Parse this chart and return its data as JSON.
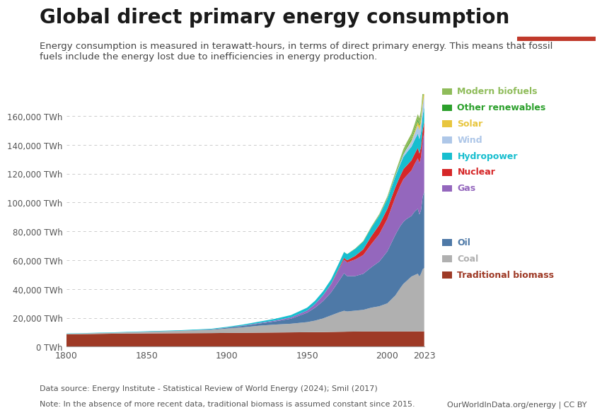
{
  "title": "Global direct primary energy consumption",
  "subtitle": "Energy consumption is measured in terawatt-hours, in terms of direct primary energy. This means that fossil\nfuels include the energy lost due to inefficiencies in energy production.",
  "data_source": "Data source: Energy Institute - Statistical Review of World Energy (2024); Smil (2017)",
  "note": "Note: In the absence of more recent data, traditional biomass is assumed constant since 2015.",
  "owid_url": "OurWorldInData.org/energy | CC BY",
  "ylim": [
    0,
    175000
  ],
  "yticks": [
    0,
    20000,
    40000,
    60000,
    80000,
    100000,
    120000,
    140000,
    160000
  ],
  "ytick_labels": [
    "0 TWh",
    "20,000 TWh",
    "40,000 TWh",
    "60,000 TWh",
    "80,000 TWh",
    "100,000 TWh",
    "120,000 TWh",
    "140,000 TWh",
    "160,000 TWh"
  ],
  "xticks": [
    1800,
    1850,
    1900,
    1950,
    2000,
    2023
  ],
  "series_names": [
    "Traditional biomass",
    "Coal",
    "Oil",
    "Gas",
    "Nuclear",
    "Hydropower",
    "Wind",
    "Solar",
    "Other renewables",
    "Modern biofuels"
  ],
  "series_colors": [
    "#9e3a26",
    "#b0b0b0",
    "#4e79a7",
    "#9467bd",
    "#d62728",
    "#17becf",
    "#aec7e8",
    "#e8c63f",
    "#2ca02c",
    "#8fbc5a"
  ],
  "legend_names_top": [
    "Modern biofuels",
    "Other renewables",
    "Solar",
    "Wind",
    "Hydropower",
    "Nuclear",
    "Gas"
  ],
  "legend_colors_top": [
    "#8fbc5a",
    "#2ca02c",
    "#e8c63f",
    "#aec7e8",
    "#17becf",
    "#d62728",
    "#9467bd"
  ],
  "legend_names_bottom": [
    "Oil",
    "Coal",
    "Traditional biomass"
  ],
  "legend_colors_bottom": [
    "#4e79a7",
    "#b0b0b0",
    "#9e3a26"
  ],
  "background_color": "#ffffff",
  "grid_color": "#cccccc"
}
